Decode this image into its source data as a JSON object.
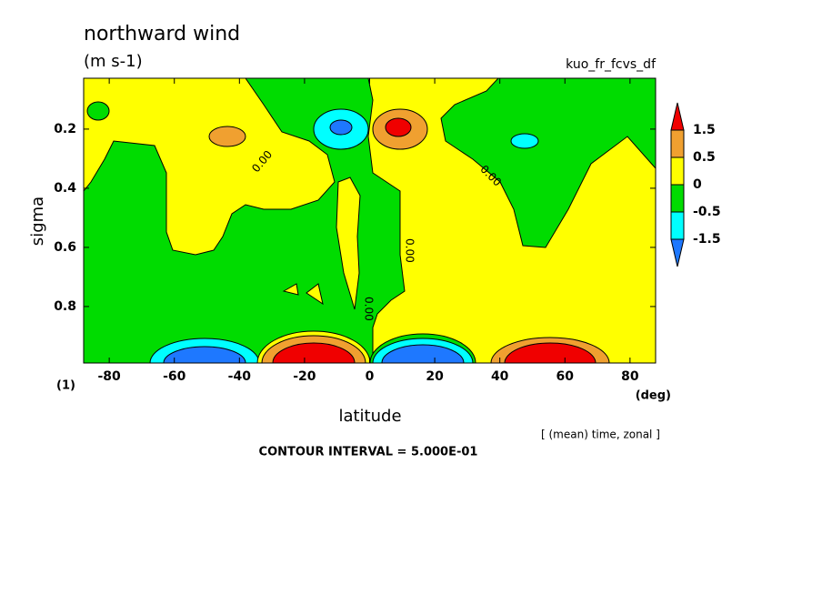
{
  "chart_data": {
    "type": "contour",
    "title": "northward wind",
    "subtitle": "(m s-1)",
    "dataset": "kuo_fr_fcvs_df",
    "xlabel": "latitude",
    "xunit": "(deg)",
    "ylabel": "sigma",
    "yunit": "(1)",
    "annotation": "[ (mean) time, zonal ]",
    "contour_interval": "CONTOUR INTERVAL = 5.000E-01",
    "contour_label": {
      "value": 0,
      "label": "0.00"
    },
    "xlim": [
      -87.86,
      87.86
    ],
    "xticks": [
      -80,
      -60,
      -40,
      -20,
      0,
      20,
      40,
      60,
      80
    ],
    "ylim": [
      0.028,
      0.991
    ],
    "yticks": [
      0.2,
      0.4,
      0.6,
      0.8
    ],
    "y_inverted": true,
    "colorbar": {
      "levels": [
        1.5,
        0.5,
        0,
        -0.5,
        -1.5
      ],
      "colors": [
        "#f00000",
        "#f0a030",
        "#ffff00",
        "#00dc00",
        "#00ffff",
        "#1e78ff"
      ]
    }
  }
}
